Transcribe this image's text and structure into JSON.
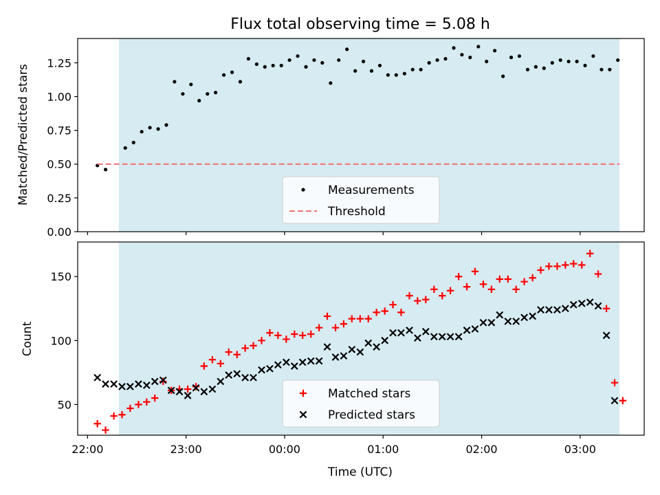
{
  "chart_data": [
    {
      "type": "scatter",
      "title": "Flux total observing time = 5.08 h",
      "ylabel": "Matched/Predicted stars",
      "xlabel": "",
      "x_axis": "time (UTC), decimal hours; 24+ = next day",
      "xlim": [
        21.9,
        27.65
      ],
      "ylim": [
        0.0,
        1.43
      ],
      "yticks": [
        0.0,
        0.25,
        0.5,
        0.75,
        1.0,
        1.25
      ],
      "ytick_labels": [
        "0.00",
        "0.25",
        "0.50",
        "0.75",
        "1.00",
        "1.25"
      ],
      "observing_window": [
        22.317,
        27.4
      ],
      "observing_window_color": "#add8e6",
      "legend_position": "lower-center",
      "series": [
        {
          "name": "Measurements",
          "marker": "dot",
          "color": "#000000",
          "x": [
            22.1,
            22.183,
            22.383,
            22.467,
            22.55,
            22.633,
            22.717,
            22.8,
            22.883,
            22.967,
            23.05,
            23.133,
            23.217,
            23.3,
            23.383,
            23.467,
            23.55,
            23.633,
            23.717,
            23.8,
            23.883,
            23.967,
            24.05,
            24.133,
            24.217,
            24.3,
            24.383,
            24.467,
            24.55,
            24.633,
            24.717,
            24.8,
            24.883,
            24.967,
            25.05,
            25.133,
            25.217,
            25.3,
            25.383,
            25.467,
            25.55,
            25.633,
            25.717,
            25.8,
            25.883,
            25.967,
            26.05,
            26.133,
            26.217,
            26.3,
            26.383,
            26.467,
            26.55,
            26.633,
            26.717,
            26.8,
            26.883,
            26.967,
            27.05,
            27.133,
            27.217,
            27.3,
            27.383
          ],
          "y": [
            0.49,
            0.46,
            0.62,
            0.66,
            0.74,
            0.77,
            0.76,
            0.79,
            1.11,
            1.02,
            1.09,
            0.97,
            1.02,
            1.03,
            1.16,
            1.18,
            1.11,
            1.28,
            1.24,
            1.22,
            1.23,
            1.23,
            1.27,
            1.3,
            1.22,
            1.27,
            1.25,
            1.1,
            1.27,
            1.35,
            1.19,
            1.26,
            1.19,
            1.23,
            1.16,
            1.16,
            1.17,
            1.2,
            1.2,
            1.25,
            1.27,
            1.28,
            1.36,
            1.31,
            1.29,
            1.37,
            1.26,
            1.34,
            1.15,
            1.29,
            1.3,
            1.2,
            1.22,
            1.21,
            1.25,
            1.27,
            1.26,
            1.26,
            1.23,
            1.3,
            1.2,
            1.2,
            1.27
          ]
        },
        {
          "name": "Threshold",
          "style": "dashed-line",
          "color": "#f07070",
          "x": [
            22.1,
            27.4
          ],
          "y": [
            0.5,
            0.5
          ]
        }
      ]
    },
    {
      "type": "scatter",
      "title": "",
      "ylabel": "Count",
      "xlabel": "Time (UTC)",
      "x_axis": "time (UTC), decimal hours; 24+ = next day",
      "xlim": [
        21.9,
        27.65
      ],
      "ylim": [
        26,
        177
      ],
      "yticks": [
        50,
        100,
        150
      ],
      "xticks": [
        22,
        23,
        24,
        25,
        26,
        27
      ],
      "xtick_labels": [
        "22:00",
        "23:00",
        "00:00",
        "01:00",
        "02:00",
        "03:00"
      ],
      "observing_window": [
        22.317,
        27.4
      ],
      "observing_window_color": "#add8e6",
      "legend_position": "lower-center",
      "series": [
        {
          "name": "Matched stars",
          "marker": "plus",
          "color": "#ff0000",
          "x": [
            22.1,
            22.183,
            22.267,
            22.35,
            22.433,
            22.517,
            22.6,
            22.683,
            22.767,
            22.85,
            22.933,
            23.017,
            23.1,
            23.183,
            23.267,
            23.35,
            23.433,
            23.517,
            23.6,
            23.683,
            23.767,
            23.85,
            23.933,
            24.017,
            24.1,
            24.183,
            24.267,
            24.35,
            24.433,
            24.517,
            24.6,
            24.683,
            24.767,
            24.85,
            24.933,
            25.017,
            25.1,
            25.183,
            25.267,
            25.35,
            25.433,
            25.517,
            25.6,
            25.683,
            25.767,
            25.85,
            25.933,
            26.017,
            26.1,
            26.183,
            26.267,
            26.35,
            26.433,
            26.517,
            26.6,
            26.683,
            26.767,
            26.85,
            26.933,
            27.017,
            27.1,
            27.183,
            27.267,
            27.35,
            27.433
          ],
          "y": [
            35,
            30,
            41,
            42,
            47,
            50,
            52,
            55,
            68,
            61,
            62,
            62,
            64,
            80,
            85,
            82,
            91,
            89,
            94,
            96,
            100,
            106,
            104,
            101,
            105,
            104,
            105,
            110,
            119,
            110,
            113,
            117,
            117,
            117,
            122,
            123,
            128,
            122,
            135,
            131,
            132,
            140,
            135,
            139,
            150,
            142,
            154,
            144,
            140,
            148,
            148,
            140,
            146,
            149,
            155,
            158,
            158,
            159,
            160,
            159,
            168,
            152,
            125,
            67,
            53
          ]
        },
        {
          "name": "Predicted stars",
          "marker": "x",
          "color": "#000000",
          "x": [
            22.1,
            22.183,
            22.267,
            22.35,
            22.433,
            22.517,
            22.6,
            22.683,
            22.767,
            22.85,
            22.933,
            23.017,
            23.1,
            23.183,
            23.267,
            23.35,
            23.433,
            23.517,
            23.6,
            23.683,
            23.767,
            23.85,
            23.933,
            24.017,
            24.1,
            24.183,
            24.267,
            24.35,
            24.433,
            24.517,
            24.6,
            24.683,
            24.767,
            24.85,
            24.933,
            25.017,
            25.1,
            25.183,
            25.267,
            25.35,
            25.433,
            25.517,
            25.6,
            25.683,
            25.767,
            25.85,
            25.933,
            26.017,
            26.1,
            26.183,
            26.267,
            26.35,
            26.433,
            26.517,
            26.6,
            26.683,
            26.767,
            26.85,
            26.933,
            27.017,
            27.1,
            27.183,
            27.267,
            27.35
          ],
          "y": [
            71,
            66,
            66,
            64,
            64,
            66,
            65,
            68,
            69,
            61,
            60,
            57,
            63,
            60,
            62,
            68,
            73,
            74,
            71,
            71,
            77,
            78,
            81,
            83,
            80,
            83,
            84,
            84,
            95,
            87,
            88,
            93,
            91,
            98,
            95,
            100,
            106,
            106,
            108,
            102,
            107,
            103,
            103,
            103,
            103,
            108,
            109,
            114,
            114,
            120,
            115,
            115,
            118,
            119,
            124,
            124,
            124,
            125,
            128,
            129,
            130,
            127,
            104,
            53
          ]
        }
      ]
    }
  ]
}
